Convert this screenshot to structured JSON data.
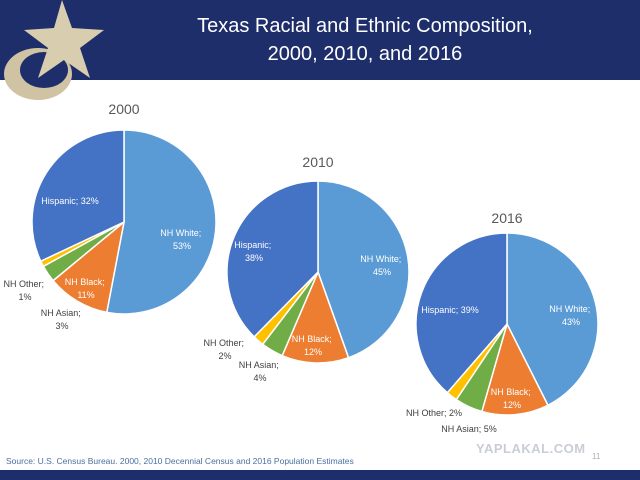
{
  "header": {
    "title_line1": "Texas Racial and Ethnic Composition,",
    "title_line2": "2000, 2010, and 2016"
  },
  "colors": {
    "header_bg": "#1d2e6b",
    "NH White": "#5b9bd5",
    "NH Black": "#ed7d31",
    "NH Asian": "#70ad47",
    "NH Other": "#ffc000",
    "Hispanic": "#4472c4"
  },
  "chart_data": [
    {
      "type": "pie",
      "title": "2000",
      "slices": [
        {
          "label": "NH White; 53%",
          "category": "NH White",
          "value": 53
        },
        {
          "label": "NH Black; 11%",
          "category": "NH Black",
          "value": 11
        },
        {
          "label": "NH Asian; 3%",
          "category": "NH Asian",
          "value": 3
        },
        {
          "label": "NH Other; 1%",
          "category": "NH Other",
          "value": 1
        },
        {
          "label": "Hispanic; 32%",
          "category": "Hispanic",
          "value": 32
        }
      ]
    },
    {
      "type": "pie",
      "title": "2010",
      "slices": [
        {
          "label": "NH White; 45%",
          "category": "NH White",
          "value": 45
        },
        {
          "label": "NH Black; 12%",
          "category": "NH Black",
          "value": 12
        },
        {
          "label": "NH Asian; 4%",
          "category": "NH Asian",
          "value": 4
        },
        {
          "label": "NH Other; 2%",
          "category": "NH Other",
          "value": 2
        },
        {
          "label": "Hispanic; 38%",
          "category": "Hispanic",
          "value": 38
        }
      ]
    },
    {
      "type": "pie",
      "title": "2016",
      "slices": [
        {
          "label": "NH White; 43%",
          "category": "NH White",
          "value": 43
        },
        {
          "label": "NH Black; 12%",
          "category": "NH Black",
          "value": 12
        },
        {
          "label": "NH Asian; 5%",
          "category": "NH Asian",
          "value": 5
        },
        {
          "label": "NH Other; 2%",
          "category": "NH Other",
          "value": 2
        },
        {
          "label": "Hispanic; 39%",
          "category": "Hispanic",
          "value": 39
        }
      ]
    }
  ],
  "source": "Source: U.S. Census Bureau. 2000, 2010 Decennial Census and 2016 Population Estimates",
  "watermark": "YAPLAKAL.COM",
  "page_number": "11"
}
